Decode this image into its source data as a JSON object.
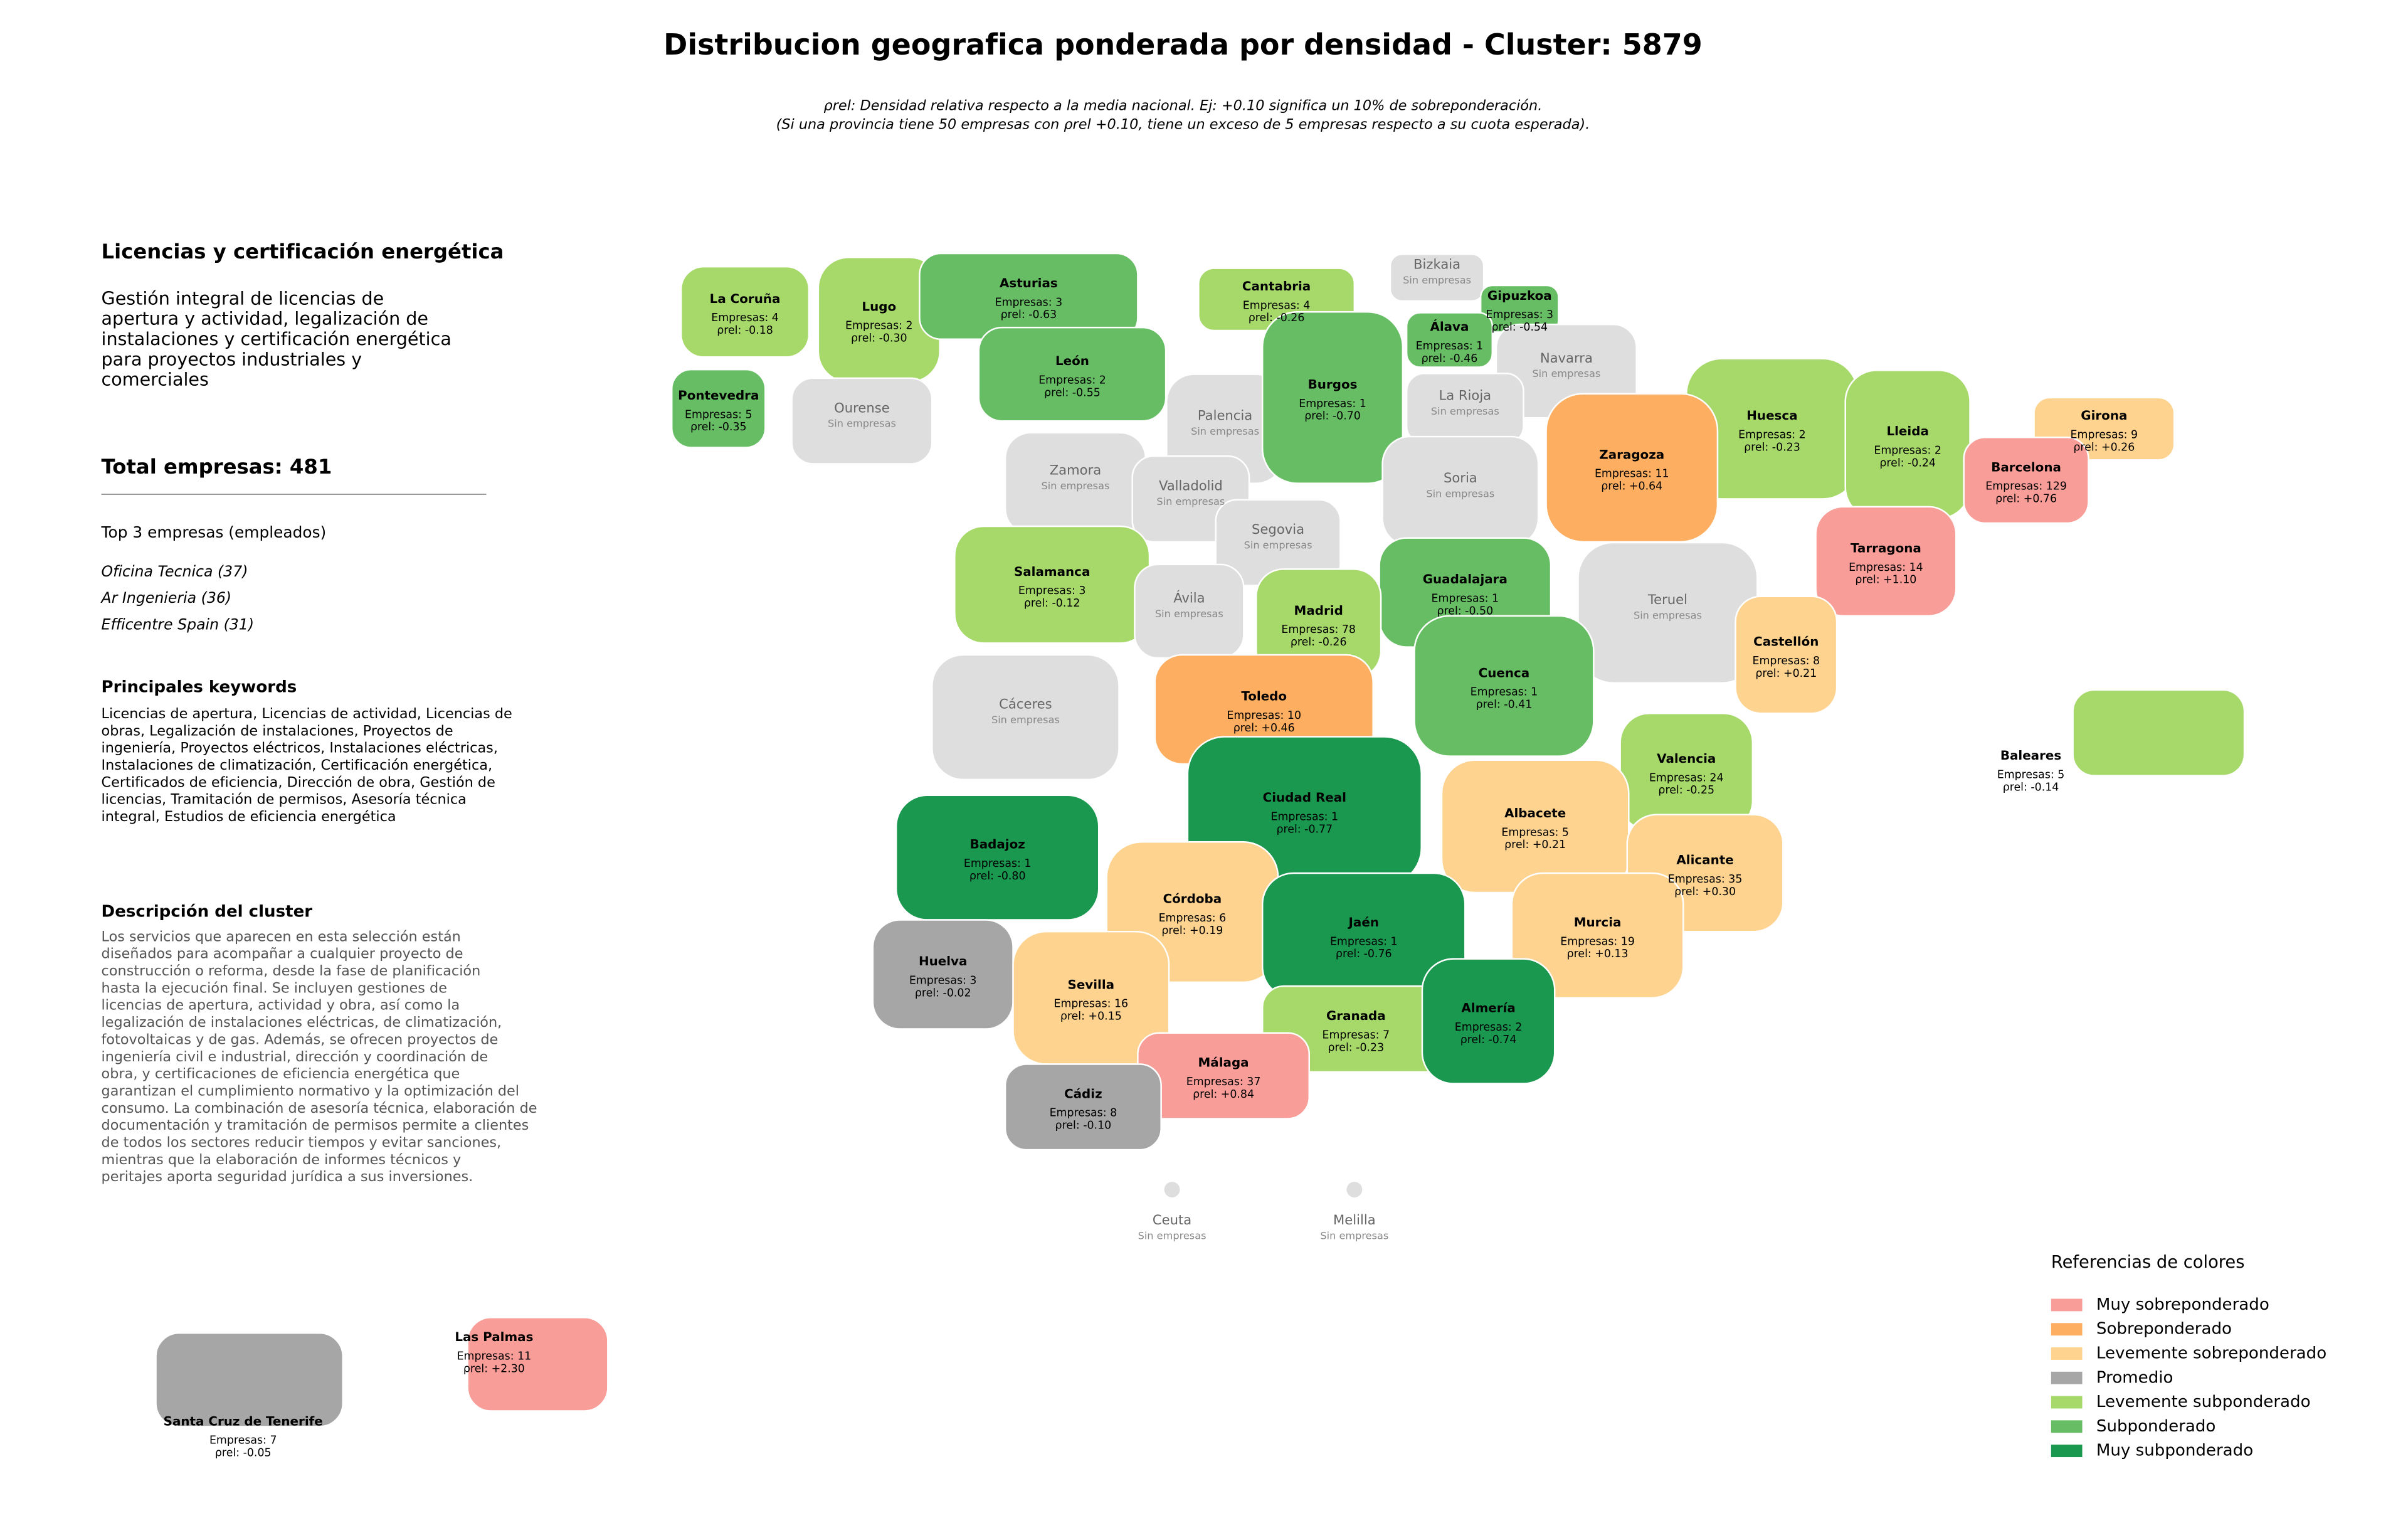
{
  "header": {
    "title": "Distribucion geografica ponderada por densidad - Cluster: 5879",
    "note_lines": [
      "ρrel: Densidad relativa respecto a la media nacional. Ej: +0.10 significa un 10% de sobreponderación.",
      "(Si una provincia tiene 50 empresas con ρrel +0.10, tiene un exceso de 5 empresas respecto a su cuota esperada)."
    ]
  },
  "panel": {
    "title": "Licencias y certificación energética",
    "description_lines": [
      "Gestión integral de licencias de",
      "apertura y actividad, legalización de",
      "instalaciones y certificación energética",
      "para proyectos industriales y",
      "comerciales"
    ],
    "total": "Total empresas: 481",
    "top_heading": "Top 3 empresas (empleados)",
    "top_items": [
      "Oficina Tecnica (37)",
      "Ar Ingenieria (36)",
      "Efficentre Spain (31)"
    ],
    "keywords_heading": "Principales keywords",
    "keywords_lines": [
      "Licencias de apertura, Licencias de actividad, Licencias de",
      "obras, Legalización de instalaciones, Proyectos de",
      "ingeniería, Proyectos eléctricos, Instalaciones eléctricas,",
      "Instalaciones de climatización, Certificación energética,",
      "Certificados de eficiencia, Dirección de obra, Gestión de",
      "licencias, Tramitación de permisos, Asesoría técnica",
      "integral, Estudios de eficiencia energética"
    ],
    "cluster_heading": "Descripción del cluster",
    "cluster_lines": [
      "Los servicios que aparecen en esta selección están",
      "diseñados para acompañar a cualquier proyecto de",
      "construcción o reforma, desde la fase de planificación",
      "hasta la ejecución final. Se incluyen gestiones de",
      "licencias de apertura, actividad y obra, así como la",
      "legalización de instalaciones eléctricas, de climatización,",
      "fotovoltaicas y de gas. Además, se ofrecen proyectos de",
      "ingeniería civil e industrial, dirección y coordinación de",
      "obra, y certificaciones de eficiencia energética que",
      "garantizan el cumplimiento normativo y la optimización del",
      "consumo. La combinación de asesoría técnica, elaboración de",
      "documentación y tramitación de permisos permite a clientes",
      "de todos los sectores reducir tiempos y evitar sanciones,",
      "mientras que la elaboración de informes técnicos y",
      "peritajes aporta seguridad jurídica a sus inversiones."
    ]
  },
  "legend": {
    "title": "Referencias de colores",
    "empty_color": "#dedede",
    "items": [
      {
        "label": "Muy sobreponderado",
        "color": "#f89d97"
      },
      {
        "label": "Sobreponderado",
        "color": "#fdae61"
      },
      {
        "label": "Levemente sobreponderado",
        "color": "#fed38f"
      },
      {
        "label": "Promedio",
        "color": "#a6a6a6"
      },
      {
        "label": "Levemente subponderado",
        "color": "#a6d96a"
      },
      {
        "label": "Subponderado",
        "color": "#66bd63"
      },
      {
        "label": "Muy subponderado",
        "color": "#1a9850"
      }
    ]
  },
  "provinces": [
    {
      "name": "La Coruña",
      "empresas_text": "Empresas: 4",
      "rho_text": "ρrel: -0.18",
      "category": 4
    },
    {
      "name": "Lugo",
      "empresas_text": "Empresas: 2",
      "rho_text": "ρrel: -0.30",
      "category": 4
    },
    {
      "name": "Asturias",
      "empresas_text": "Empresas: 3",
      "rho_text": "ρrel: -0.63",
      "category": 5
    },
    {
      "name": "Cantabria",
      "empresas_text": "Empresas: 4",
      "rho_text": "ρrel: -0.26",
      "category": 4
    },
    {
      "name": "Bizkaia",
      "status_text": "Sin empresas"
    },
    {
      "name": "Gipuzkoa",
      "empresas_text": "Empresas: 3",
      "rho_text": "ρrel: -0.54",
      "category": 5
    },
    {
      "name": "Álava",
      "empresas_text": "Empresas: 1",
      "rho_text": "ρrel: -0.46",
      "category": 5
    },
    {
      "name": "Navarra",
      "status_text": "Sin empresas"
    },
    {
      "name": "Pontevedra",
      "empresas_text": "Empresas: 5",
      "rho_text": "ρrel: -0.35",
      "category": 5
    },
    {
      "name": "Ourense",
      "status_text": "Sin empresas"
    },
    {
      "name": "León",
      "empresas_text": "Empresas: 2",
      "rho_text": "ρrel: -0.55",
      "category": 5
    },
    {
      "name": "Palencia",
      "status_text": "Sin empresas"
    },
    {
      "name": "Burgos",
      "empresas_text": "Empresas: 1",
      "rho_text": "ρrel: -0.70",
      "category": 5
    },
    {
      "name": "La Rioja",
      "status_text": "Sin empresas"
    },
    {
      "name": "Huesca",
      "empresas_text": "Empresas: 2",
      "rho_text": "ρrel: -0.23",
      "category": 4
    },
    {
      "name": "Lleida",
      "empresas_text": "Empresas: 2",
      "rho_text": "ρrel: -0.24",
      "category": 4
    },
    {
      "name": "Girona",
      "empresas_text": "Empresas: 9",
      "rho_text": "ρrel: +0.26",
      "category": 2
    },
    {
      "name": "Barcelona",
      "empresas_text": "Empresas: 129",
      "rho_text": "ρrel: +0.76",
      "category": 0
    },
    {
      "name": "Zaragoza",
      "empresas_text": "Empresas: 11",
      "rho_text": "ρrel: +0.64",
      "category": 1
    },
    {
      "name": "Zamora",
      "status_text": "Sin empresas"
    },
    {
      "name": "Valladolid",
      "status_text": "Sin empresas"
    },
    {
      "name": "Soria",
      "status_text": "Sin empresas"
    },
    {
      "name": "Segovia",
      "status_text": "Sin empresas"
    },
    {
      "name": "Tarragona",
      "empresas_text": "Empresas: 14",
      "rho_text": "ρrel: +1.10",
      "category": 0
    },
    {
      "name": "Salamanca",
      "empresas_text": "Empresas: 3",
      "rho_text": "ρrel: -0.12",
      "category": 4
    },
    {
      "name": "Guadalajara",
      "empresas_text": "Empresas: 1",
      "rho_text": "ρrel: -0.50",
      "category": 5
    },
    {
      "name": "Madrid",
      "empresas_text": "Empresas: 78",
      "rho_text": "ρrel: -0.26",
      "category": 4
    },
    {
      "name": "Ávila",
      "status_text": "Sin empresas"
    },
    {
      "name": "Teruel",
      "status_text": "Sin empresas"
    },
    {
      "name": "Castellón",
      "empresas_text": "Empresas: 8",
      "rho_text": "ρrel: +0.21",
      "category": 2
    },
    {
      "name": "Cuenca",
      "empresas_text": "Empresas: 1",
      "rho_text": "ρrel: -0.41",
      "category": 5
    },
    {
      "name": "Toledo",
      "empresas_text": "Empresas: 10",
      "rho_text": "ρrel: +0.46",
      "category": 1
    },
    {
      "name": "Cáceres",
      "status_text": "Sin empresas"
    },
    {
      "name": "Valencia",
      "empresas_text": "Empresas: 24",
      "rho_text": "ρrel: -0.25",
      "category": 4
    },
    {
      "name": "Baleares",
      "empresas_text": "Empresas: 5",
      "rho_text": "ρrel: -0.14",
      "category": 4
    },
    {
      "name": "Ciudad Real",
      "empresas_text": "Empresas: 1",
      "rho_text": "ρrel: -0.77",
      "category": 6
    },
    {
      "name": "Badajoz",
      "empresas_text": "Empresas: 1",
      "rho_text": "ρrel: -0.80",
      "category": 6
    },
    {
      "name": "Albacete",
      "empresas_text": "Empresas: 5",
      "rho_text": "ρrel: +0.21",
      "category": 2
    },
    {
      "name": "Alicante",
      "empresas_text": "Empresas: 35",
      "rho_text": "ρrel: +0.30",
      "category": 2
    },
    {
      "name": "Córdoba",
      "empresas_text": "Empresas: 6",
      "rho_text": "ρrel: +0.19",
      "category": 2
    },
    {
      "name": "Jaén",
      "empresas_text": "Empresas: 1",
      "rho_text": "ρrel: -0.76",
      "category": 6
    },
    {
      "name": "Murcia",
      "empresas_text": "Empresas: 19",
      "rho_text": "ρrel: +0.13",
      "category": 2
    },
    {
      "name": "Huelva",
      "empresas_text": "Empresas: 3",
      "rho_text": "ρrel: -0.02",
      "category": 3
    },
    {
      "name": "Sevilla",
      "empresas_text": "Empresas: 16",
      "rho_text": "ρrel: +0.15",
      "category": 2
    },
    {
      "name": "Granada",
      "empresas_text": "Empresas: 7",
      "rho_text": "ρrel: -0.23",
      "category": 4
    },
    {
      "name": "Almería",
      "empresas_text": "Empresas: 2",
      "rho_text": "ρrel: -0.74",
      "category": 6
    },
    {
      "name": "Málaga",
      "empresas_text": "Empresas: 37",
      "rho_text": "ρrel: +0.84",
      "category": 0
    },
    {
      "name": "Cádiz",
      "empresas_text": "Empresas: 8",
      "rho_text": "ρrel: -0.10",
      "category": 3
    },
    {
      "name": "Ceuta",
      "status_text": "Sin empresas"
    },
    {
      "name": "Melilla",
      "status_text": "Sin empresas"
    },
    {
      "name": "Las Palmas",
      "empresas_text": "Empresas: 11",
      "rho_text": "ρrel: +2.30",
      "category": 0
    },
    {
      "name": "Santa Cruz de Tenerife",
      "empresas_text": "Empresas: 7",
      "rho_text": "ρrel: -0.05",
      "category": 3
    }
  ]
}
